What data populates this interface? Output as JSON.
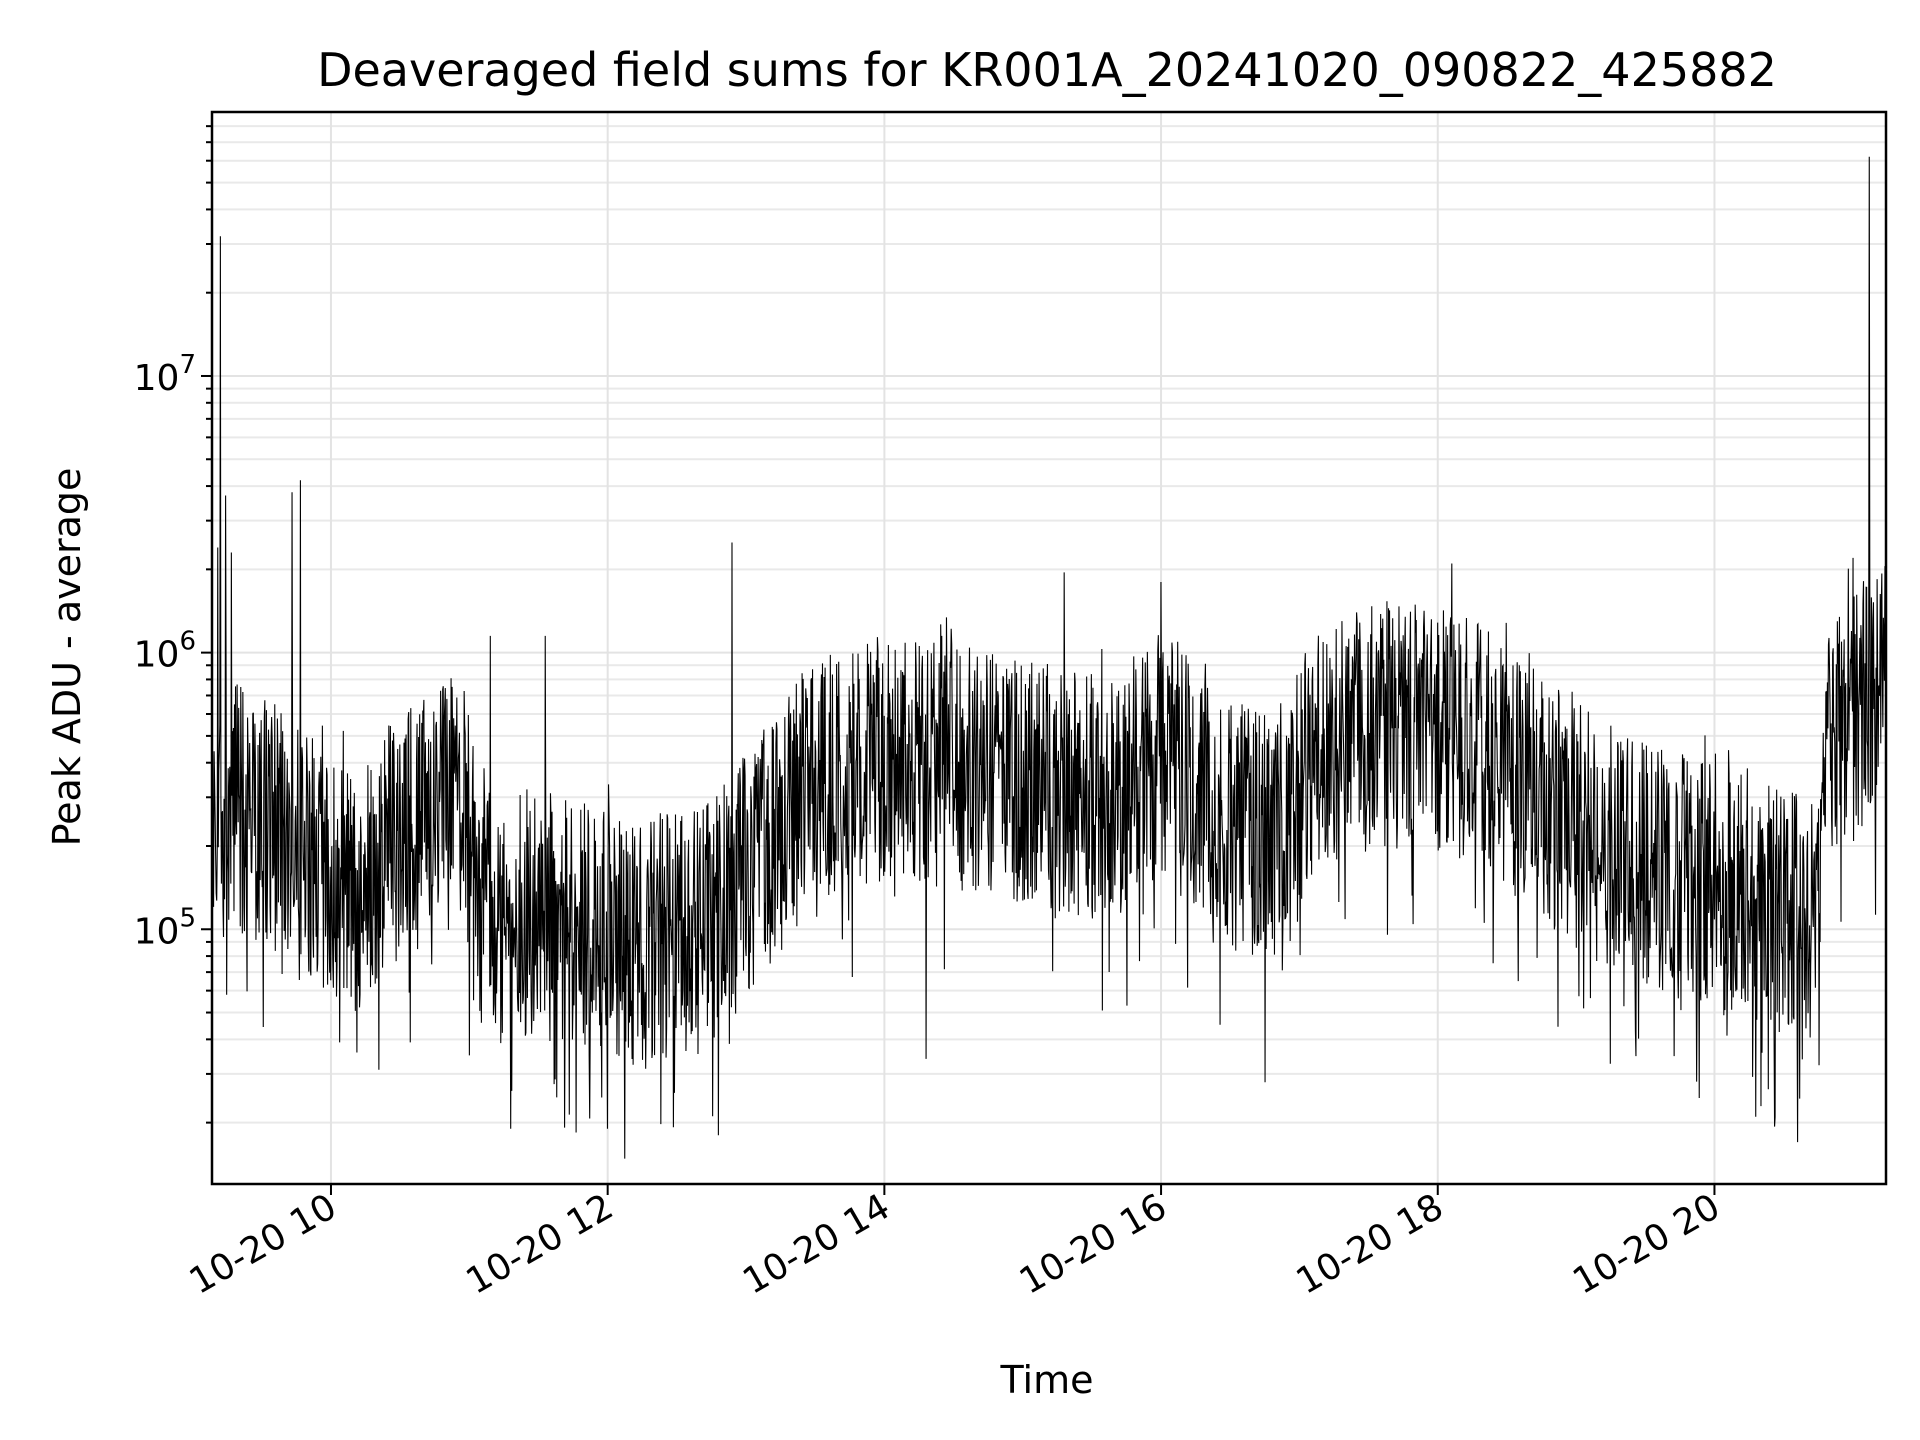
{
  "chart_data": {
    "type": "line",
    "title": "Deaveraged field sums for KR001A_20241020_090822_425882",
    "xlabel": "Time",
    "ylabel": "Peak ADU - average",
    "x_tick_labels": [
      "10-20 10",
      "10-20 12",
      "10-20 14",
      "10-20 16",
      "10-20 18",
      "10-20 20"
    ],
    "x_tick_hours": [
      10,
      12,
      14,
      16,
      18,
      20
    ],
    "x_range_hours": [
      9.14,
      21.24
    ],
    "y_scale": "log",
    "ylim": [
      12000,
      90000000
    ],
    "y_ticks": [
      {
        "value": 100000,
        "base": "10",
        "exp": "5"
      },
      {
        "value": 1000000,
        "base": "10",
        "exp": "6"
      },
      {
        "value": 10000000,
        "base": "10",
        "exp": "7"
      }
    ],
    "grid": true,
    "line_color": "#000000",
    "anchors": [
      {
        "h": 9.14,
        "v": 300000
      },
      {
        "h": 9.5,
        "v": 250000
      },
      {
        "h": 9.9,
        "v": 170000
      },
      {
        "h": 10.2,
        "v": 140000
      },
      {
        "h": 10.5,
        "v": 220000
      },
      {
        "h": 10.9,
        "v": 280000
      },
      {
        "h": 11.1,
        "v": 120000
      },
      {
        "h": 11.6,
        "v": 110000
      },
      {
        "h": 12.2,
        "v": 90000
      },
      {
        "h": 12.7,
        "v": 100000
      },
      {
        "h": 13.1,
        "v": 180000
      },
      {
        "h": 13.5,
        "v": 350000
      },
      {
        "h": 14.0,
        "v": 420000
      },
      {
        "h": 14.6,
        "v": 380000
      },
      {
        "h": 15.2,
        "v": 330000
      },
      {
        "h": 15.7,
        "v": 280000
      },
      {
        "h": 16.0,
        "v": 450000
      },
      {
        "h": 16.5,
        "v": 230000
      },
      {
        "h": 16.9,
        "v": 220000
      },
      {
        "h": 17.1,
        "v": 450000
      },
      {
        "h": 17.6,
        "v": 550000
      },
      {
        "h": 18.2,
        "v": 500000
      },
      {
        "h": 18.7,
        "v": 320000
      },
      {
        "h": 19.2,
        "v": 200000
      },
      {
        "h": 19.7,
        "v": 160000
      },
      {
        "h": 20.4,
        "v": 120000
      },
      {
        "h": 20.75,
        "v": 110000
      },
      {
        "h": 20.8,
        "v": 450000
      },
      {
        "h": 21.0,
        "v": 600000
      },
      {
        "h": 21.24,
        "v": 750000
      }
    ],
    "spikes": [
      {
        "h": 9.18,
        "v": 2400000
      },
      {
        "h": 9.2,
        "v": 32000000
      },
      {
        "h": 9.24,
        "v": 3700000
      },
      {
        "h": 9.28,
        "v": 2300000
      },
      {
        "h": 9.72,
        "v": 3800000
      },
      {
        "h": 9.78,
        "v": 4200000
      },
      {
        "h": 11.15,
        "v": 1150000
      },
      {
        "h": 11.55,
        "v": 1150000
      },
      {
        "h": 12.9,
        "v": 2500000
      },
      {
        "h": 15.3,
        "v": 1950000
      },
      {
        "h": 16.0,
        "v": 1800000
      },
      {
        "h": 18.1,
        "v": 2100000
      },
      {
        "h": 21.0,
        "v": 2200000
      },
      {
        "h": 21.12,
        "v": 62000000
      }
    ],
    "dips": [
      {
        "h": 11.0,
        "v": 35000
      },
      {
        "h": 11.3,
        "v": 19000
      },
      {
        "h": 12.0,
        "v": 19000
      },
      {
        "h": 12.8,
        "v": 18000
      },
      {
        "h": 14.3,
        "v": 34000
      },
      {
        "h": 16.75,
        "v": 28000
      },
      {
        "h": 20.3,
        "v": 21000
      },
      {
        "h": 20.6,
        "v": 17000
      }
    ]
  }
}
